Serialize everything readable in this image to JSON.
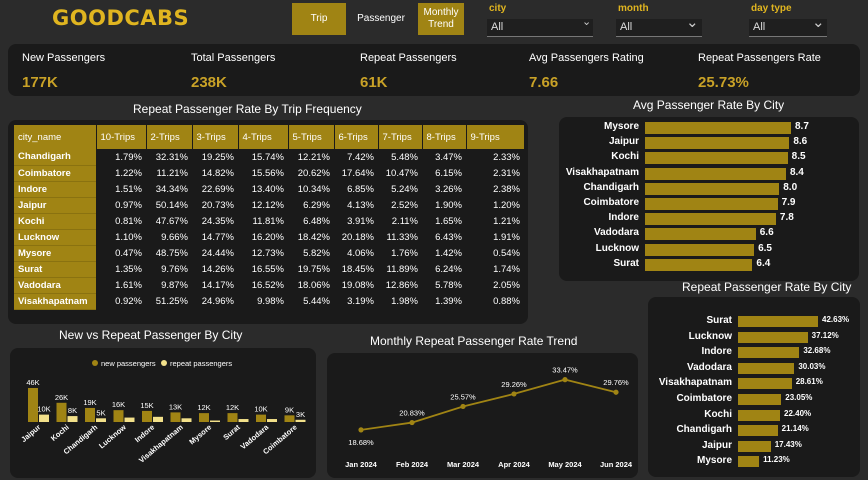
{
  "header": {
    "logo": "GOODCABS",
    "nav": [
      "Trip",
      "Passenger",
      "Monthly Trend"
    ],
    "slicers": [
      {
        "label": "city",
        "value": "All"
      },
      {
        "label": "month",
        "value": "All"
      },
      {
        "label": "day type",
        "value": "All"
      }
    ]
  },
  "kpis": [
    {
      "label": "New Passengers",
      "value": "177K"
    },
    {
      "label": "Total Passengers",
      "value": "238K"
    },
    {
      "label": "Repeat Passengers",
      "value": "61K"
    },
    {
      "label": "Avg Passengers Rating",
      "value": "7.66"
    },
    {
      "label": "Repeat Passengers Rate",
      "value": "25.73%"
    }
  ],
  "freq_table": {
    "title": "Repeat  Passenger Rate  By  Trip Frequency",
    "columns": [
      "city_name",
      "10-Trips",
      "2-Trips",
      "3-Trips",
      "4-Trips",
      "5-Trips",
      "6-Trips",
      "7-Trips",
      "8-Trips",
      "9-Trips"
    ],
    "rows": [
      [
        "Chandigarh",
        "1.79%",
        "32.31%",
        "19.25%",
        "15.74%",
        "12.21%",
        "7.42%",
        "5.48%",
        "3.47%",
        "2.33%"
      ],
      [
        "Coimbatore",
        "1.22%",
        "11.21%",
        "14.82%",
        "15.56%",
        "20.62%",
        "17.64%",
        "10.47%",
        "6.15%",
        "2.31%"
      ],
      [
        "Indore",
        "1.51%",
        "34.34%",
        "22.69%",
        "13.40%",
        "10.34%",
        "6.85%",
        "5.24%",
        "3.26%",
        "2.38%"
      ],
      [
        "Jaipur",
        "0.97%",
        "50.14%",
        "20.73%",
        "12.12%",
        "6.29%",
        "4.13%",
        "2.52%",
        "1.90%",
        "1.20%"
      ],
      [
        "Kochi",
        "0.81%",
        "47.67%",
        "24.35%",
        "11.81%",
        "6.48%",
        "3.91%",
        "2.11%",
        "1.65%",
        "1.21%"
      ],
      [
        "Lucknow",
        "1.10%",
        "9.66%",
        "14.77%",
        "16.20%",
        "18.42%",
        "20.18%",
        "11.33%",
        "6.43%",
        "1.91%"
      ],
      [
        "Mysore",
        "0.47%",
        "48.75%",
        "24.44%",
        "12.73%",
        "5.82%",
        "4.06%",
        "1.76%",
        "1.42%",
        "0.54%"
      ],
      [
        "Surat",
        "1.35%",
        "9.76%",
        "14.26%",
        "16.55%",
        "19.75%",
        "18.45%",
        "11.89%",
        "6.24%",
        "1.74%"
      ],
      [
        "Vadodara",
        "1.61%",
        "9.87%",
        "14.17%",
        "16.52%",
        "18.06%",
        "19.08%",
        "12.86%",
        "5.78%",
        "2.05%"
      ],
      [
        "Visakhapatnam",
        "0.92%",
        "51.25%",
        "24.96%",
        "9.98%",
        "5.44%",
        "3.19%",
        "1.98%",
        "1.39%",
        "0.88%"
      ]
    ]
  },
  "chart_data": [
    {
      "type": "bar",
      "orientation": "horizontal",
      "title": "Avg  Passenger Rate  By  City",
      "categories": [
        "Mysore",
        "Jaipur",
        "Kochi",
        "Visakhapatnam",
        "Chandigarh",
        "Coimbatore",
        "Indore",
        "Vadodara",
        "Lucknow",
        "Surat"
      ],
      "values": [
        8.7,
        8.6,
        8.5,
        8.4,
        8.0,
        7.9,
        7.8,
        6.6,
        6.5,
        6.4
      ],
      "labels": [
        "8.7",
        "8.6",
        "8.5",
        "8.4",
        "8.0",
        "7.9",
        "7.8",
        "6.6",
        "6.5",
        "6.4"
      ]
    },
    {
      "type": "bar",
      "orientation": "horizontal",
      "title": "Repeat Passenger Rate By  City",
      "categories": [
        "Surat",
        "Lucknow",
        "Indore",
        "Vadodara",
        "Visakhapatnam",
        "Coimbatore",
        "Kochi",
        "Chandigarh",
        "Jaipur",
        "Mysore"
      ],
      "values": [
        42.63,
        37.12,
        32.68,
        30.03,
        28.61,
        23.05,
        22.4,
        21.14,
        17.43,
        11.23
      ],
      "labels": [
        "42.63%",
        "37.12%",
        "32.68%",
        "30.03%",
        "28.61%",
        "23.05%",
        "22.40%",
        "21.14%",
        "17.43%",
        "11.23%"
      ]
    },
    {
      "type": "bar",
      "title": "New vs Repeat Passenger  By  City",
      "categories": [
        "Jaipur",
        "Kochi",
        "Chandigarh",
        "Lucknow",
        "Indore",
        "Visakhapatnam",
        "Mysore",
        "Surat",
        "Vadodara",
        "Coimbatore"
      ],
      "series": [
        {
          "name": "new passengers",
          "values": [
            46,
            26,
            19,
            16,
            15,
            13,
            12,
            12,
            10,
            9
          ],
          "labels": [
            "46K",
            "26K",
            "19K",
            "16K",
            "15K",
            "13K",
            "12K",
            "12K",
            "10K",
            "9K"
          ]
        },
        {
          "name": "repeat passengers",
          "values": [
            10,
            8,
            5,
            6,
            7,
            5,
            2,
            4,
            4,
            3
          ],
          "labels": [
            "10K",
            "8K",
            "5K",
            "",
            "",
            "",
            "",
            "",
            "",
            "3K"
          ]
        }
      ],
      "legend": "top",
      "colors": [
        "#a08414",
        "#f2e08a"
      ]
    },
    {
      "type": "line",
      "title": "Monthly Repeat Passenger  Rate Trend",
      "categories": [
        "Jan 2024",
        "Feb 2024",
        "Mar 2024",
        "Apr 2024",
        "May 2024",
        "Jun 2024"
      ],
      "values": [
        18.68,
        20.83,
        25.57,
        29.26,
        33.47,
        29.76
      ],
      "labels": [
        "18.68%",
        "20.83%",
        "25.57%",
        "29.26%",
        "33.47%",
        "29.76%"
      ],
      "color": "#a08414"
    }
  ]
}
